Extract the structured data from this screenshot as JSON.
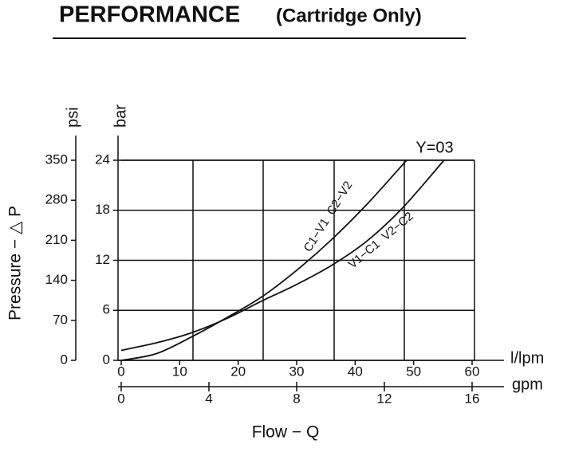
{
  "chart_data": {
    "type": "line",
    "title": "PERFORMANCE",
    "subtitle": "(Cartridge Only)",
    "annotation": "Y=03",
    "y_label": "Pressure − △ P",
    "y_unit": "psi",
    "y2_unit": "bar",
    "x_unit": "l/lpm",
    "x2_unit": "gpm",
    "x_label": "Flow − Q",
    "xlim": [
      0,
      60
    ],
    "xticks": [
      0,
      10,
      20,
      30,
      40,
      50,
      60
    ],
    "x2lim": [
      0,
      16
    ],
    "x2ticks": [
      0,
      4,
      8,
      12,
      16
    ],
    "ylim": [
      0,
      350
    ],
    "yticks": [
      0,
      70,
      140,
      210,
      280,
      350
    ],
    "y2lim": [
      0,
      24
    ],
    "y2ticks": [
      0,
      6,
      12,
      18,
      24
    ],
    "grid": true,
    "series": [
      {
        "name": "C1−V1  C2−V2",
        "color": "#111111",
        "axis": "y2",
        "x": [
          0,
          6,
          12,
          18,
          24,
          30,
          36,
          42,
          48.8
        ],
        "values": [
          0,
          0.8,
          2.8,
          5.1,
          7.6,
          10.8,
          14.5,
          18.7,
          24
        ]
      },
      {
        "name": "V1−C1  V2−C2",
        "color": "#111111",
        "axis": "y2",
        "x": [
          0,
          6,
          12,
          18,
          24,
          30,
          36,
          42,
          48,
          55.2
        ],
        "values": [
          1.2,
          2.1,
          3.3,
          5.0,
          7.1,
          9.1,
          11.4,
          14.3,
          18.2,
          24
        ]
      }
    ]
  }
}
